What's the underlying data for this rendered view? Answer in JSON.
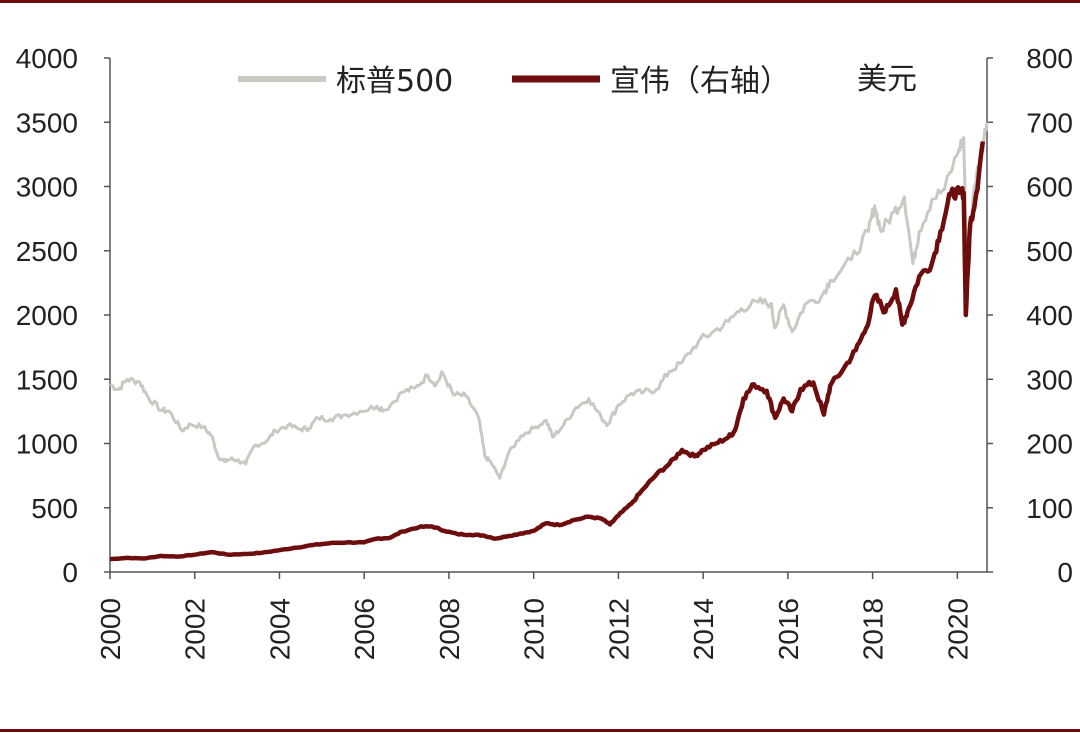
{
  "chart_data": {
    "type": "line",
    "x_label_rotation": "vertical",
    "x_ticks": [
      "2000",
      "2002",
      "2004",
      "2006",
      "2008",
      "2010",
      "2012",
      "2014",
      "2016",
      "2018",
      "2020"
    ],
    "x_range": [
      2000,
      2020.7
    ],
    "y_left": {
      "ticks": [
        "0",
        "500",
        "1000",
        "1500",
        "2000",
        "2500",
        "3000",
        "3500",
        "4000"
      ],
      "range": [
        0,
        4000
      ]
    },
    "y_right": {
      "ticks": [
        "0",
        "100",
        "200",
        "300",
        "400",
        "500",
        "600",
        "700",
        "800"
      ],
      "range": [
        0,
        800
      ],
      "unit": "美元"
    },
    "legend_position": "top",
    "colors": {
      "sp500": "#c9c9c1",
      "visa": "#6e0d0d",
      "frame": "#6e0d0d"
    },
    "series": [
      {
        "name": "标普500",
        "axis": "left",
        "points": [
          [
            2000.0,
            1460
          ],
          [
            2000.2,
            1420
          ],
          [
            2000.4,
            1500
          ],
          [
            2000.7,
            1480
          ],
          [
            2000.9,
            1360
          ],
          [
            2001.2,
            1260
          ],
          [
            2001.4,
            1250
          ],
          [
            2001.7,
            1100
          ],
          [
            2001.9,
            1150
          ],
          [
            2002.2,
            1130
          ],
          [
            2002.4,
            1060
          ],
          [
            2002.55,
            900
          ],
          [
            2002.7,
            860
          ],
          [
            2002.85,
            880
          ],
          [
            2003.0,
            870
          ],
          [
            2003.2,
            840
          ],
          [
            2003.4,
            980
          ],
          [
            2003.7,
            1020
          ],
          [
            2003.9,
            1100
          ],
          [
            2004.2,
            1140
          ],
          [
            2004.5,
            1110
          ],
          [
            2004.7,
            1120
          ],
          [
            2004.9,
            1200
          ],
          [
            2005.2,
            1190
          ],
          [
            2005.5,
            1220
          ],
          [
            2005.9,
            1250
          ],
          [
            2006.3,
            1290
          ],
          [
            2006.5,
            1260
          ],
          [
            2006.9,
            1400
          ],
          [
            2007.2,
            1430
          ],
          [
            2007.5,
            1530
          ],
          [
            2007.7,
            1460
          ],
          [
            2007.85,
            1550
          ],
          [
            2008.1,
            1380
          ],
          [
            2008.4,
            1370
          ],
          [
            2008.7,
            1200
          ],
          [
            2008.85,
            900
          ],
          [
            2009.0,
            850
          ],
          [
            2009.2,
            730
          ],
          [
            2009.4,
            920
          ],
          [
            2009.7,
            1060
          ],
          [
            2010.0,
            1120
          ],
          [
            2010.3,
            1180
          ],
          [
            2010.45,
            1050
          ],
          [
            2010.7,
            1140
          ],
          [
            2011.0,
            1280
          ],
          [
            2011.3,
            1350
          ],
          [
            2011.6,
            1200
          ],
          [
            2011.75,
            1150
          ],
          [
            2012.0,
            1300
          ],
          [
            2012.3,
            1390
          ],
          [
            2012.6,
            1400
          ],
          [
            2012.9,
            1420
          ],
          [
            2013.2,
            1560
          ],
          [
            2013.5,
            1630
          ],
          [
            2013.9,
            1800
          ],
          [
            2014.2,
            1860
          ],
          [
            2014.6,
            1950
          ],
          [
            2014.9,
            2050
          ],
          [
            2015.3,
            2100
          ],
          [
            2015.6,
            2090
          ],
          [
            2015.7,
            1900
          ],
          [
            2015.9,
            2080
          ],
          [
            2016.1,
            1870
          ],
          [
            2016.4,
            2080
          ],
          [
            2016.8,
            2150
          ],
          [
            2017.0,
            2270
          ],
          [
            2017.5,
            2430
          ],
          [
            2017.9,
            2650
          ],
          [
            2018.05,
            2850
          ],
          [
            2018.2,
            2650
          ],
          [
            2018.5,
            2800
          ],
          [
            2018.75,
            2920
          ],
          [
            2018.95,
            2400
          ],
          [
            2019.1,
            2650
          ],
          [
            2019.4,
            2900
          ],
          [
            2019.7,
            2980
          ],
          [
            2020.05,
            3300
          ],
          [
            2020.15,
            3380
          ],
          [
            2020.22,
            2300
          ],
          [
            2020.4,
            3000
          ],
          [
            2020.55,
            3250
          ],
          [
            2020.7,
            3500
          ]
        ]
      },
      {
        "name": "宣伟（右轴）",
        "axis": "right",
        "points": [
          [
            2000.0,
            20
          ],
          [
            2000.4,
            22
          ],
          [
            2000.8,
            21
          ],
          [
            2001.2,
            25
          ],
          [
            2001.6,
            24
          ],
          [
            2002.0,
            27
          ],
          [
            2002.4,
            31
          ],
          [
            2002.8,
            27
          ],
          [
            2003.2,
            28
          ],
          [
            2003.6,
            30
          ],
          [
            2004.0,
            34
          ],
          [
            2004.4,
            38
          ],
          [
            2004.8,
            42
          ],
          [
            2005.2,
            45
          ],
          [
            2005.6,
            46
          ],
          [
            2006.0,
            46
          ],
          [
            2006.3,
            52
          ],
          [
            2006.6,
            53
          ],
          [
            2006.9,
            63
          ],
          [
            2007.3,
            70
          ],
          [
            2007.6,
            71
          ],
          [
            2007.9,
            64
          ],
          [
            2008.2,
            59
          ],
          [
            2008.5,
            58
          ],
          [
            2008.8,
            57
          ],
          [
            2009.1,
            52
          ],
          [
            2009.4,
            56
          ],
          [
            2009.7,
            60
          ],
          [
            2010.0,
            64
          ],
          [
            2010.3,
            76
          ],
          [
            2010.6,
            73
          ],
          [
            2010.9,
            80
          ],
          [
            2011.3,
            86
          ],
          [
            2011.6,
            83
          ],
          [
            2011.8,
            74
          ],
          [
            2012.0,
            88
          ],
          [
            2012.3,
            106
          ],
          [
            2012.6,
            130
          ],
          [
            2012.9,
            152
          ],
          [
            2013.2,
            168
          ],
          [
            2013.5,
            190
          ],
          [
            2013.8,
            180
          ],
          [
            2014.0,
            190
          ],
          [
            2014.3,
            200
          ],
          [
            2014.6,
            210
          ],
          [
            2014.75,
            220
          ],
          [
            2014.95,
            270
          ],
          [
            2015.2,
            292
          ],
          [
            2015.5,
            282
          ],
          [
            2015.7,
            240
          ],
          [
            2015.9,
            270
          ],
          [
            2016.1,
            250
          ],
          [
            2016.3,
            285
          ],
          [
            2016.6,
            295
          ],
          [
            2016.85,
            245
          ],
          [
            2017.0,
            290
          ],
          [
            2017.3,
            315
          ],
          [
            2017.6,
            345
          ],
          [
            2017.85,
            380
          ],
          [
            2018.05,
            430
          ],
          [
            2018.3,
            405
          ],
          [
            2018.55,
            440
          ],
          [
            2018.7,
            385
          ],
          [
            2018.85,
            410
          ],
          [
            2019.1,
            460
          ],
          [
            2019.4,
            480
          ],
          [
            2019.6,
            530
          ],
          [
            2019.85,
            590
          ],
          [
            2020.05,
            590
          ],
          [
            2020.15,
            590
          ],
          [
            2020.2,
            400
          ],
          [
            2020.3,
            540
          ],
          [
            2020.45,
            590
          ],
          [
            2020.6,
            670
          ]
        ]
      }
    ]
  }
}
